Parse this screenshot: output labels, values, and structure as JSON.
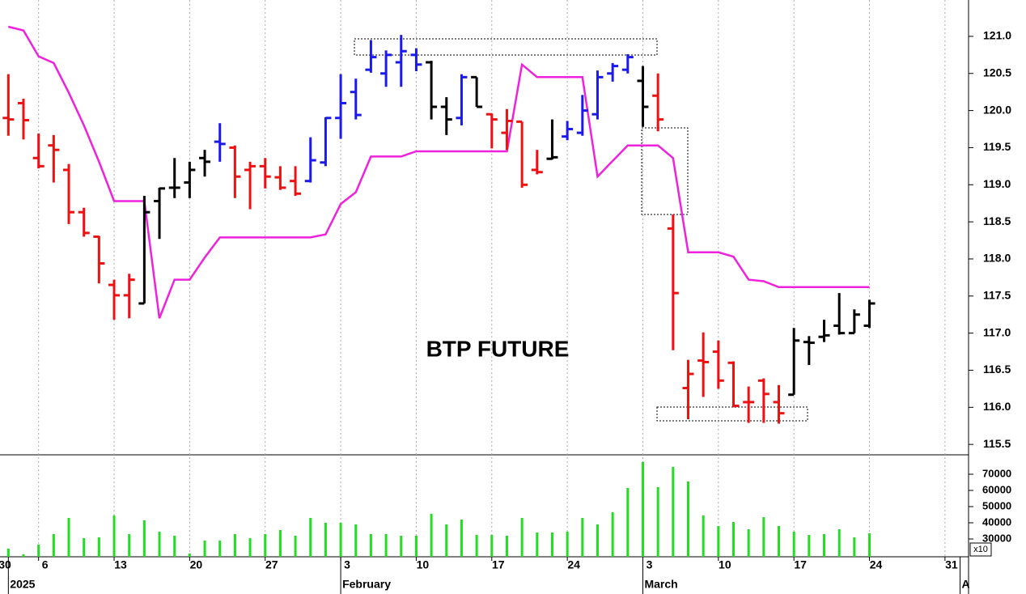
{
  "chart_data": {
    "type": "ohlc",
    "annotation": "BTP FUTURE",
    "categories": [
      "30",
      null,
      null,
      null,
      "6",
      null,
      null,
      null,
      null,
      "13",
      null,
      null,
      null,
      null,
      "20",
      null,
      null,
      null,
      null,
      "27",
      null,
      null,
      null,
      null,
      "3",
      null,
      null,
      null,
      null,
      "10",
      null,
      null,
      null,
      null,
      "17",
      null,
      null,
      null,
      null,
      "24",
      null,
      null,
      null,
      null,
      "3",
      null,
      null,
      null,
      null,
      "10",
      null,
      null,
      null,
      null,
      "17",
      null,
      null,
      null,
      null,
      "24",
      null,
      null,
      null,
      null,
      "31",
      null
    ],
    "month_ticks": [
      {
        "value": 2,
        "label": "2025"
      },
      {
        "value": 24,
        "label": "February"
      },
      {
        "value": 44,
        "label": "March"
      },
      {
        "value": 65,
        "label": "A"
      }
    ],
    "open": [
      null,
      null,
      119.9,
      120.1,
      119.36,
      119.53,
      119.2,
      118.63,
      118.3,
      117.65,
      117.51,
      117.4,
      118.78,
      118.96,
      119.03,
      119.36,
      119.58,
      119.5,
      119.2,
      119.25,
      119.1,
      119.05,
      119.05,
      119.3,
      119.9,
      120.25,
      120.55,
      120.5,
      120.65,
      120.75,
      120.65,
      120.05,
      119.9,
      120.45,
      119.95,
      119.7,
      119.85,
      119.2,
      119.35,
      119.65,
      119.7,
      119.95,
      120.5,
      120.55,
      120.4,
      120.2,
      118.41,
      116.26,
      116.63,
      116.75,
      116.6,
      116.07,
      116.36,
      116.07,
      116.17,
      116.88,
      116.95,
      117.1,
      117.0,
      117.1,
      null,
      null,
      null,
      null,
      null,
      null
    ],
    "high": [
      null,
      null,
      120.49,
      120.16,
      119.69,
      119.67,
      119.28,
      118.69,
      118.31,
      117.72,
      117.8,
      118.85,
      118.96,
      119.36,
      119.31,
      119.47,
      119.83,
      119.53,
      119.31,
      119.36,
      119.25,
      119.25,
      119.64,
      119.91,
      120.49,
      120.43,
      120.95,
      120.81,
      121.02,
      120.84,
      120.67,
      120.18,
      120.49,
      120.45,
      119.96,
      120.02,
      119.85,
      119.47,
      119.88,
      119.86,
      120.21,
      120.54,
      120.64,
      120.76,
      120.6,
      120.5,
      118.6,
      116.64,
      117.01,
      116.9,
      116.62,
      116.28,
      116.39,
      116.3,
      117.07,
      116.96,
      117.18,
      117.54,
      117.32,
      117.45,
      null,
      null,
      null,
      null,
      null,
      null
    ],
    "low": [
      null,
      null,
      119.66,
      119.61,
      119.22,
      119.03,
      118.47,
      118.3,
      117.67,
      117.18,
      117.2,
      117.4,
      118.27,
      118.82,
      118.82,
      119.11,
      119.31,
      118.82,
      118.67,
      118.95,
      118.93,
      118.85,
      119.03,
      119.25,
      119.62,
      119.88,
      120.51,
      120.32,
      120.32,
      120.53,
      119.88,
      119.67,
      119.8,
      120.05,
      119.49,
      119.47,
      118.96,
      119.14,
      119.34,
      119.6,
      119.66,
      119.88,
      120.39,
      120.5,
      119.78,
      119.72,
      116.77,
      115.84,
      116.14,
      116.25,
      116.0,
      115.79,
      115.79,
      115.78,
      116.17,
      116.57,
      116.88,
      116.98,
      117.0,
      117.07,
      null,
      null,
      null,
      null,
      null,
      null
    ],
    "close": [
      null,
      null,
      119.88,
      119.87,
      119.25,
      119.47,
      118.63,
      118.35,
      117.94,
      117.51,
      117.72,
      118.63,
      118.95,
      118.96,
      119.2,
      119.31,
      119.55,
      119.11,
      119.25,
      119.11,
      118.96,
      118.88,
      119.33,
      119.9,
      120.1,
      119.94,
      120.72,
      120.75,
      120.8,
      120.62,
      120.05,
      119.88,
      120.45,
      120.05,
      119.88,
      119.86,
      119.0,
      119.17,
      119.37,
      119.75,
      120.0,
      120.45,
      120.6,
      120.72,
      120.05,
      119.88,
      117.54,
      116.45,
      116.61,
      116.36,
      116.02,
      116.07,
      116.18,
      115.92,
      116.9,
      116.87,
      116.97,
      117.0,
      117.25,
      117.4,
      null,
      null,
      null,
      null,
      null,
      null
    ],
    "bar_colors": [
      null,
      null,
      "#ee1111",
      "#ee1111",
      "#ee1111",
      "#ee1111",
      "#ee1111",
      "#ee1111",
      "#ee1111",
      "#ee1111",
      "#ee1111",
      "#000000",
      "#000000",
      "#000000",
      "#000000",
      "#000000",
      "#1a1aee",
      "#ee1111",
      "#ee1111",
      "#ee1111",
      "#ee1111",
      "#ee1111",
      "#1a1aee",
      "#1a1aee",
      "#1a1aee",
      "#1a1aee",
      "#1a1aee",
      "#1a1aee",
      "#1a1aee",
      "#1a1aee",
      "#000000",
      "#000000",
      "#1a1aee",
      "#000000",
      "#ee1111",
      "#ee1111",
      "#ee1111",
      "#ee1111",
      "#000000",
      "#1a1aee",
      "#1a1aee",
      "#1a1aee",
      "#1a1aee",
      "#1a1aee",
      "#000000",
      "#ee1111",
      "#ee1111",
      "#ee1111",
      "#ee1111",
      "#ee1111",
      "#ee1111",
      "#ee1111",
      "#ee1111",
      "#ee1111",
      "#000000",
      "#000000",
      "#000000",
      "#000000",
      "#000000",
      "#000000",
      null,
      null,
      null,
      null,
      null,
      null
    ],
    "line": {
      "color": "#ee22dd",
      "values": [
        null,
        null,
        121.13,
        121.08,
        120.73,
        120.64,
        120.24,
        119.8,
        119.31,
        118.78,
        118.78,
        118.78,
        117.2,
        117.72,
        117.72,
        118.02,
        118.29,
        118.29,
        118.29,
        118.29,
        118.29,
        118.29,
        118.29,
        118.33,
        118.74,
        118.9,
        119.38,
        119.38,
        119.38,
        119.45,
        119.45,
        119.45,
        119.45,
        119.45,
        119.45,
        119.45,
        120.62,
        120.45,
        120.45,
        120.45,
        120.45,
        119.11,
        119.32,
        119.53,
        119.53,
        119.53,
        119.36,
        118.09,
        118.09,
        118.09,
        118.03,
        117.72,
        117.7,
        117.62,
        117.62,
        117.62,
        117.62,
        117.62,
        117.62,
        117.62,
        null,
        null,
        null,
        null,
        null,
        null
      ]
    },
    "ylim": [
      115.36,
      121.49
    ],
    "yticks": [
      {
        "value": 115.5,
        "label": "115.5"
      },
      {
        "value": 116,
        "label": "116.0"
      },
      116.5,
      {
        "value": 117,
        "label": "117.0"
      },
      117.5,
      {
        "value": 118,
        "label": "118.0"
      },
      118.5,
      {
        "value": 119,
        "label": "119.0"
      },
      119.5,
      {
        "value": 120,
        "label": "120.0"
      },
      120.5,
      {
        "value": 121,
        "label": "121.0"
      }
    ],
    "grid": true,
    "volume": {
      "type": "bar",
      "color": "#22dd22",
      "unit_label": "x10",
      "values": [
        null,
        null,
        24000,
        20500,
        26500,
        33000,
        43000,
        30500,
        31000,
        44500,
        33000,
        41500,
        34500,
        32000,
        21000,
        29000,
        29000,
        33000,
        30500,
        33000,
        35500,
        32000,
        43000,
        40000,
        40000,
        39000,
        33000,
        33000,
        32000,
        32000,
        45500,
        39000,
        42000,
        32500,
        32500,
        32000,
        43000,
        34000,
        34000,
        34500,
        43000,
        39000,
        46500,
        61500,
        77500,
        62000,
        74500,
        65500,
        44500,
        38000,
        40500,
        36000,
        43500,
        38000,
        34500,
        32500,
        33000,
        36000,
        31000,
        33500,
        null,
        null,
        null,
        null,
        null,
        null
      ],
      "ylim": [
        19000,
        81500
      ],
      "yticks": [
        30000,
        40000,
        50000,
        60000,
        70000
      ]
    }
  }
}
